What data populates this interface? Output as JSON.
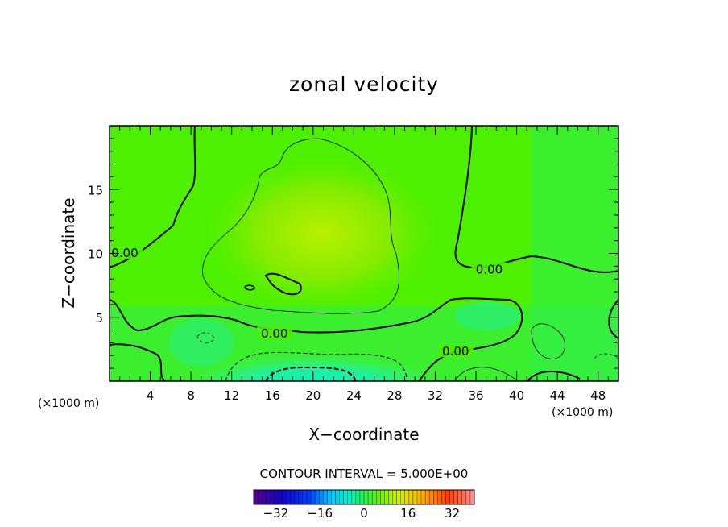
{
  "chart_data": {
    "type": "heatmap",
    "title": "zonal velocity",
    "xlabel": "X−coordinate",
    "ylabel": "Z−coordinate",
    "x_units_left": "(×1000 m)",
    "x_units_right": "(×1000 m)",
    "xlim": [
      0,
      50
    ],
    "ylim": [
      0,
      20
    ],
    "x_ticks": [
      "4",
      "8",
      "12",
      "16",
      "20",
      "24",
      "28",
      "32",
      "36",
      "40",
      "44",
      "48"
    ],
    "y_ticks": [
      "5",
      "10",
      "15"
    ],
    "contour_interval_label": "CONTOUR INTERVAL = 5.000E+00",
    "contour_labels": [
      {
        "text": "0.00",
        "x": 1.5,
        "z": 9.9
      },
      {
        "text": "0.00",
        "x": 16.2,
        "z": 3.6
      },
      {
        "text": "0.00",
        "x": 37.3,
        "z": 8.6
      },
      {
        "text": "0.00",
        "x": 34.0,
        "z": 2.2
      }
    ],
    "colorbar": {
      "range": [
        -40,
        40
      ],
      "tick_labels": [
        "−32",
        "−16",
        "0",
        "16",
        "32"
      ],
      "tick_values": [
        -32,
        -16,
        0,
        16,
        32
      ]
    },
    "field_summary": [
      {
        "region": "upper-center jet core",
        "x": 23,
        "z": 11,
        "value": 10
      },
      {
        "region": "near-surface minimum",
        "x": 18,
        "z": 0.6,
        "value": -12
      },
      {
        "region": "ambient",
        "value": 3
      }
    ]
  }
}
